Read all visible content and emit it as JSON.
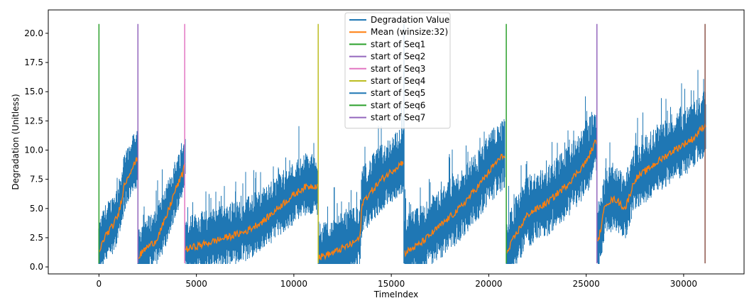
{
  "chart_data": {
    "type": "line",
    "title": "",
    "xlabel": "TimeIndex",
    "ylabel": "Degradation (Unitless)",
    "xlim": [
      -2600,
      33100
    ],
    "ylim": [
      -0.6,
      22.0
    ],
    "xticks": [
      0,
      5000,
      10000,
      15000,
      20000,
      25000,
      30000
    ],
    "yticks": [
      0.0,
      2.5,
      5.0,
      7.5,
      10.0,
      12.5,
      15.0,
      17.5,
      20.0
    ],
    "xtick_labels": [
      "0",
      "5000",
      "10000",
      "15000",
      "20000",
      "25000",
      "30000"
    ],
    "ytick_labels": [
      "0.0",
      "2.5",
      "5.0",
      "7.5",
      "10.0",
      "12.5",
      "15.0",
      "17.5",
      "20.0"
    ],
    "grid": false,
    "legend_position": "top-center",
    "colors": {
      "degradation": "#1f77b4",
      "mean": "#ff7f0e",
      "seq1": "#2ca02c",
      "seq2": "#9467bd",
      "seq3": "#e377c2",
      "seq4": "#bcbd22",
      "seq5": "#1f77b4",
      "seq6": "#2ca02c",
      "seq7": "#9467bd",
      "extra_line": "#8c564b"
    },
    "series": [
      {
        "name": "Degradation Value",
        "segments": [
          {
            "x": [
              0,
              300,
              700,
              1000,
              1300,
              1600,
              1900,
              1990
            ],
            "y": [
              1.2,
              2.6,
              3.5,
              4.5,
              7.0,
              8.2,
              9.0,
              9.5
            ],
            "spread": 1.5
          },
          {
            "x": [
              2000,
              2400,
              2900,
              3400,
              3900,
              4300,
              4400
            ],
            "y": [
              0.8,
              1.6,
              2.2,
              4.0,
              6.5,
              8.0,
              9.0
            ],
            "spread": 1.5
          },
          {
            "x": [
              4450,
              5500,
              6500,
              7500,
              8500,
              9500,
              10500,
              11200
            ],
            "y": [
              1.5,
              2.0,
              2.5,
              3.0,
              4.0,
              5.5,
              6.8,
              7.0
            ],
            "spread": 1.6
          },
          {
            "x": [
              11250,
              12000,
              13000,
              13400,
              13500,
              14500,
              15600
            ],
            "y": [
              0.8,
              1.2,
              2.0,
              2.5,
              5.5,
              7.5,
              9.0
            ],
            "spread": 1.7
          },
          {
            "x": [
              15700,
              16500,
              17500,
              18500,
              19500,
              20400,
              20800
            ],
            "y": [
              1.2,
              2.0,
              3.5,
              5.0,
              7.0,
              9.0,
              9.6
            ],
            "spread": 1.8
          },
          {
            "x": [
              20900,
              21300,
              22000,
              23000,
              24000,
              25000,
              25500
            ],
            "y": [
              1.0,
              2.5,
              4.5,
              5.5,
              7.0,
              9.0,
              10.8
            ],
            "spread": 1.8
          },
          {
            "x": [
              25600,
              26000,
              26500,
              27000,
              27500,
              28500,
              29500,
              30500,
              31100
            ],
            "y": [
              2.0,
              5.5,
              5.8,
              5.0,
              7.5,
              8.8,
              10.0,
              11.0,
              12.2
            ],
            "spread": 1.7
          }
        ]
      },
      {
        "name": "Mean (winsize:32)",
        "segments": [
          {
            "x": [
              0,
              300,
              700,
              1000,
              1300,
              1600,
              1900,
              1990
            ],
            "y": [
              1.2,
              2.6,
              3.5,
              4.5,
              7.0,
              8.2,
              9.0,
              9.5
            ]
          },
          {
            "x": [
              2000,
              2400,
              2900,
              3400,
              3900,
              4300,
              4400
            ],
            "y": [
              0.8,
              1.6,
              2.2,
              4.0,
              6.5,
              8.0,
              9.0
            ]
          },
          {
            "x": [
              4450,
              5500,
              6500,
              7500,
              8500,
              9500,
              10500,
              11200
            ],
            "y": [
              1.5,
              2.0,
              2.5,
              3.0,
              4.0,
              5.5,
              6.8,
              7.0
            ]
          },
          {
            "x": [
              11250,
              12000,
              13000,
              13400,
              13500,
              14500,
              15600
            ],
            "y": [
              0.8,
              1.2,
              2.0,
              2.5,
              5.5,
              7.5,
              9.0
            ]
          },
          {
            "x": [
              15700,
              16500,
              17500,
              18500,
              19500,
              20400,
              20800
            ],
            "y": [
              1.2,
              2.0,
              3.5,
              5.0,
              7.0,
              9.0,
              9.6
            ]
          },
          {
            "x": [
              20900,
              21300,
              22000,
              23000,
              24000,
              25000,
              25500
            ],
            "y": [
              1.0,
              2.5,
              4.5,
              5.5,
              7.0,
              9.0,
              10.8
            ]
          },
          {
            "x": [
              25600,
              26000,
              26500,
              27000,
              27500,
              28500,
              29500,
              30500,
              31100
            ],
            "y": [
              2.0,
              5.5,
              5.8,
              5.0,
              7.5,
              8.8,
              10.0,
              11.0,
              12.2
            ]
          }
        ]
      }
    ],
    "vertical_lines": [
      {
        "name": "start of Seq1",
        "x": 0,
        "ymin": 0.3,
        "ymax": 20.8,
        "color": "#2ca02c"
      },
      {
        "name": "start of Seq2",
        "x": 2000,
        "ymin": 0.3,
        "ymax": 20.8,
        "color": "#9467bd"
      },
      {
        "name": "start of Seq3",
        "x": 4400,
        "ymin": 0.3,
        "ymax": 20.8,
        "color": "#e377c2"
      },
      {
        "name": "start of Seq4",
        "x": 11250,
        "ymin": 0.3,
        "ymax": 20.8,
        "color": "#bcbd22"
      },
      {
        "name": "start of Seq5",
        "x": 15650,
        "ymin": 0.3,
        "ymax": 20.8,
        "color": "#1f77b4"
      },
      {
        "name": "start of Seq6",
        "x": 20900,
        "ymin": 0.3,
        "ymax": 20.8,
        "color": "#2ca02c"
      },
      {
        "name": "start of Seq7",
        "x": 25550,
        "ymin": 0.3,
        "ymax": 20.8,
        "color": "#9467bd"
      },
      {
        "x": 31100,
        "ymin": 0.3,
        "ymax": 20.8,
        "color": "#8c564b"
      }
    ],
    "legend": [
      {
        "label": "Degradation Value",
        "color": "#1f77b4"
      },
      {
        "label": "Mean (winsize:32)",
        "color": "#ff7f0e"
      },
      {
        "label": "start of Seq1",
        "color": "#2ca02c"
      },
      {
        "label": "start of Seq2",
        "color": "#9467bd"
      },
      {
        "label": "start of Seq3",
        "color": "#e377c2"
      },
      {
        "label": "start of Seq4",
        "color": "#bcbd22"
      },
      {
        "label": "start of Seq5",
        "color": "#1f77b4"
      },
      {
        "label": "start of Seq6",
        "color": "#2ca02c"
      },
      {
        "label": "start of Seq7",
        "color": "#9467bd"
      }
    ]
  }
}
